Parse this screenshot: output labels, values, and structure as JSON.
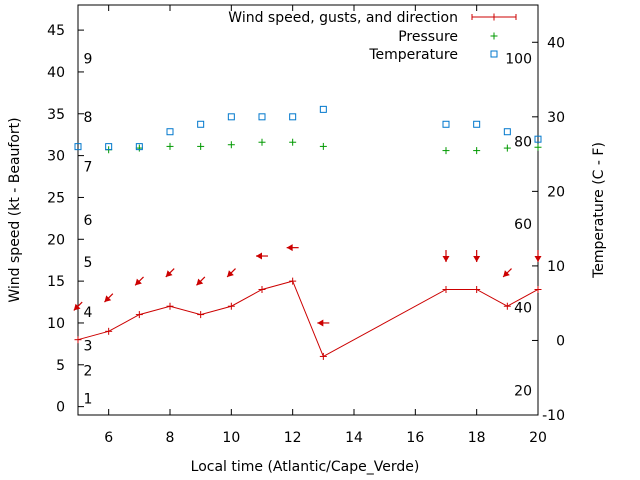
{
  "chart_data": {
    "type": "line",
    "xlabel": "Local time (Atlantic/Cape_Verde)",
    "ylabel": "Wind speed (kt - Beaufort)",
    "y2label": "Temperature (C - F)",
    "xlim": [
      5,
      20
    ],
    "ylim": [
      -1,
      48
    ],
    "y2lim": [
      -10,
      45
    ],
    "xticks": [
      6,
      8,
      10,
      12,
      14,
      16,
      18,
      20
    ],
    "yticks": [
      0,
      5,
      10,
      15,
      20,
      25,
      30,
      35,
      40,
      45
    ],
    "y2ticks": [
      -10,
      0,
      10,
      20,
      30,
      40
    ],
    "beaufort_labels": [
      {
        "label": "1",
        "kt": 1
      },
      {
        "label": "2",
        "kt": 4.3
      },
      {
        "label": "3",
        "kt": 7.3
      },
      {
        "label": "4",
        "kt": 11.3
      },
      {
        "label": "5",
        "kt": 17.3
      },
      {
        "label": "6",
        "kt": 22.3
      },
      {
        "label": "7",
        "kt": 28.7
      },
      {
        "label": "8",
        "kt": 34.6
      },
      {
        "label": "9",
        "kt": 41.6
      }
    ],
    "fahrenheit_labels": [
      {
        "label": "20",
        "c": -6.7
      },
      {
        "label": "40",
        "c": 4.4
      },
      {
        "label": "60",
        "c": 15.6
      },
      {
        "label": "80",
        "c": 26.7
      },
      {
        "label": "100",
        "c": 37.8
      }
    ],
    "legend_position": "top-right",
    "series": [
      {
        "name": "Wind speed, gusts, and direction",
        "color": "#cc0000",
        "marker": "plus-line",
        "axis": "left",
        "x": [
          5,
          6,
          7,
          8,
          9,
          10,
          11,
          12,
          13,
          17,
          18,
          19,
          20
        ],
        "values": [
          8,
          9,
          11,
          12,
          11,
          12,
          14,
          15,
          6,
          14,
          14,
          12,
          14
        ],
        "direction_arrows": [
          {
            "x": 5,
            "y": 12,
            "dir": "down-left"
          },
          {
            "x": 6,
            "y": 13,
            "dir": "down-left"
          },
          {
            "x": 7,
            "y": 15,
            "dir": "down-left"
          },
          {
            "x": 8,
            "y": 16,
            "dir": "down-left"
          },
          {
            "x": 9,
            "y": 15,
            "dir": "down-left"
          },
          {
            "x": 10,
            "y": 16,
            "dir": "down-left"
          },
          {
            "x": 11,
            "y": 18,
            "dir": "left"
          },
          {
            "x": 12,
            "y": 19,
            "dir": "left"
          },
          {
            "x": 13,
            "y": 10,
            "dir": "left"
          },
          {
            "x": 17,
            "y": 18,
            "dir": "down"
          },
          {
            "x": 18,
            "y": 18,
            "dir": "down"
          },
          {
            "x": 19,
            "y": 16,
            "dir": "down-left"
          },
          {
            "x": 20,
            "y": 18,
            "dir": "down"
          }
        ]
      },
      {
        "name": "Pressure",
        "color": "#009900",
        "marker": "plus",
        "axis": "left",
        "x": [
          6,
          7,
          8,
          9,
          10,
          11,
          12,
          13,
          17,
          18,
          19,
          20
        ],
        "values": [
          30.7,
          30.9,
          31.1,
          31.1,
          31.3,
          31.6,
          31.6,
          31.1,
          30.6,
          30.6,
          30.9,
          31.0
        ]
      },
      {
        "name": "Temperature",
        "color": "#0077cc",
        "marker": "square",
        "axis": "right",
        "x": [
          5,
          6,
          7,
          8,
          9,
          10,
          11,
          12,
          13,
          17,
          18,
          19,
          20
        ],
        "values": [
          26,
          26,
          26,
          28,
          29,
          30,
          30,
          30,
          31,
          29,
          29,
          28,
          27
        ]
      }
    ]
  }
}
